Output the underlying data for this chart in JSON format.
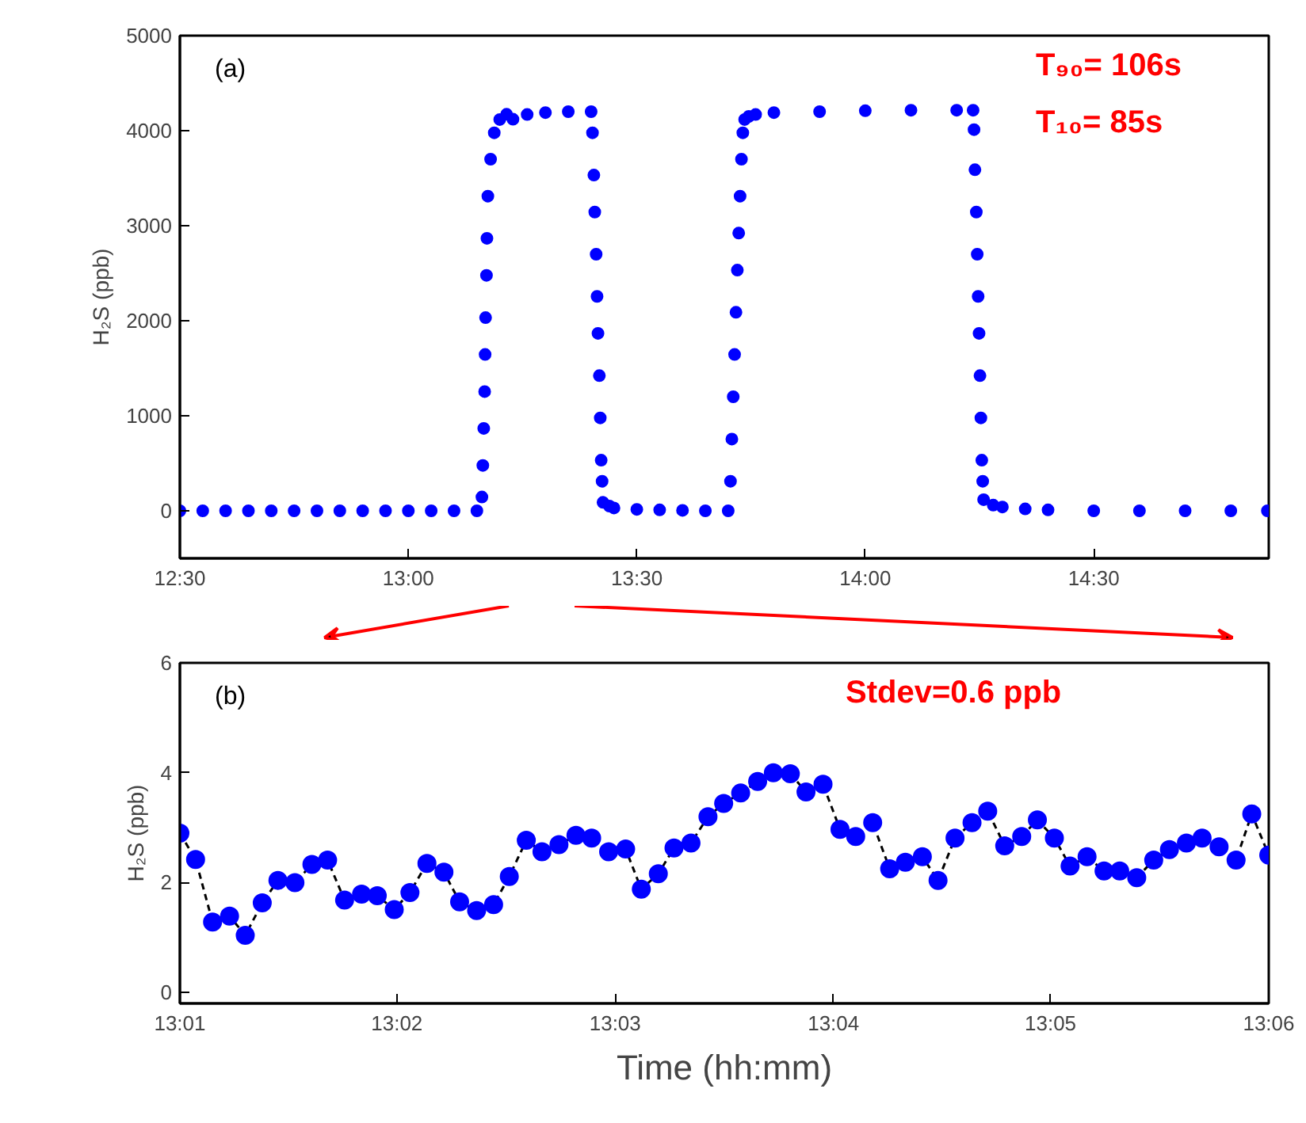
{
  "chart_data": [
    {
      "type": "scatter",
      "ylabel": "H₂S (ppb)",
      "marker": "circle",
      "annotations": [
        "(a)",
        "T₉₀= 106s",
        "T₁₀= 85s"
      ],
      "xlim": [
        12.5,
        14.883
      ],
      "ylim": [
        -500,
        5000
      ],
      "xticks": [
        {
          "value": 12.5,
          "label": "12:30"
        },
        {
          "value": 13.0,
          "label": "13:00"
        },
        {
          "value": 13.5,
          "label": "13:30"
        },
        {
          "value": 14.0,
          "label": "14:00"
        },
        {
          "value": 14.5,
          "label": "14:30"
        }
      ],
      "yticks": [
        0,
        1000,
        2000,
        3000,
        4000,
        5000
      ],
      "series": [
        {
          "color": "#0000ff",
          "x": [
            12.5,
            12.55,
            12.6,
            12.65,
            12.7,
            12.75,
            12.8,
            12.85,
            12.9,
            12.95,
            13.0,
            13.05,
            13.1,
            13.15,
            13.161,
            13.163,
            13.165,
            13.167,
            13.168,
            13.169,
            13.171,
            13.172,
            13.174,
            13.18,
            13.188,
            13.2,
            13.215,
            13.229,
            13.26,
            13.3,
            13.35,
            13.4,
            13.403,
            13.406,
            13.408,
            13.411,
            13.413,
            13.415,
            13.418,
            13.42,
            13.422,
            13.424,
            13.426,
            13.44,
            13.45,
            13.5,
            13.55,
            13.6,
            13.65,
            13.7,
            13.705,
            13.708,
            13.711,
            13.714,
            13.717,
            13.72,
            13.723,
            13.726,
            13.729,
            13.732,
            13.736,
            13.745,
            13.76,
            13.8,
            13.9,
            14.0,
            14.1,
            14.2,
            14.236,
            14.238,
            14.24,
            14.243,
            14.245,
            14.247,
            14.249,
            14.251,
            14.253,
            14.255,
            14.257,
            14.259,
            14.28,
            14.3,
            14.35,
            14.4,
            14.5,
            14.6,
            14.7,
            14.8,
            14.88
          ],
          "values": [
            0,
            0,
            0,
            0,
            0,
            0,
            0,
            0,
            0,
            0,
            0,
            0,
            0,
            0,
            145,
            478,
            867,
            1255,
            1645,
            2033,
            2478,
            2867,
            3311,
            3700,
            3978,
            4117,
            4172,
            4120,
            4170,
            4190,
            4200,
            4200,
            3978,
            3533,
            3144,
            2700,
            2256,
            1867,
            1422,
            978,
            533,
            311,
            89,
            50,
            30,
            15,
            10,
            5,
            0,
            0,
            311,
            755,
            1200,
            1645,
            2089,
            2533,
            2922,
            3311,
            3700,
            3978,
            4117,
            4150,
            4170,
            4190,
            4200,
            4210,
            4215,
            4215,
            4215,
            4011,
            3589,
            3144,
            2700,
            2256,
            1867,
            1422,
            978,
            533,
            311,
            117,
            60,
            40,
            20,
            10,
            0,
            0,
            0,
            0,
            0
          ]
        }
      ]
    },
    {
      "type": "line",
      "xlabel": "Time (hh:mm)",
      "ylabel": "H₂S (ppb)",
      "marker": "circle",
      "line_style": "dashed",
      "annotations": [
        "(b)",
        "Stdev=0.6 ppb"
      ],
      "xlim": [
        13.0167,
        13.1
      ],
      "ylim": [
        -0.2,
        6
      ],
      "xticks": [
        {
          "value": 13.0167,
          "label": "13:01"
        },
        {
          "value": 13.0333,
          "label": "13:02"
        },
        {
          "value": 13.05,
          "label": "13:03"
        },
        {
          "value": 13.0667,
          "label": "13:04"
        },
        {
          "value": 13.0833,
          "label": "13:05"
        },
        {
          "value": 13.1,
          "label": "13:06"
        }
      ],
      "yticks": [
        0,
        2,
        4,
        6
      ],
      "series": [
        {
          "color": "#0000ff",
          "x": [
            13.0167,
            13.0179,
            13.0192,
            13.0205,
            13.0217,
            13.023,
            13.0242,
            13.0255,
            13.0268,
            13.028,
            13.0293,
            13.0306,
            13.0318,
            13.0331,
            13.0343,
            13.0356,
            13.0369,
            13.0381,
            13.0394,
            13.0407,
            13.0419,
            13.0432,
            13.0444,
            13.0457,
            13.047,
            13.0482,
            13.0495,
            13.0508,
            13.052,
            13.0533,
            13.0545,
            13.0558,
            13.0571,
            13.0583,
            13.0596,
            13.0609,
            13.0621,
            13.0634,
            13.0646,
            13.0659,
            13.0672,
            13.0684,
            13.0697,
            13.071,
            13.0722,
            13.0735,
            13.0747,
            13.076,
            13.0773,
            13.0785,
            13.0798,
            13.0811,
            13.0823,
            13.0836,
            13.0848,
            13.0861,
            13.0874,
            13.0886,
            13.0899,
            13.0912,
            13.0924,
            13.0937,
            13.0949,
            13.0962,
            13.0975,
            13.0987,
            13.1
          ],
          "values": [
            2.9,
            2.42,
            1.28,
            1.39,
            1.04,
            1.63,
            2.04,
            2.0,
            2.33,
            2.41,
            1.68,
            1.79,
            1.76,
            1.51,
            1.82,
            2.35,
            2.19,
            1.65,
            1.49,
            1.6,
            2.11,
            2.77,
            2.56,
            2.69,
            2.86,
            2.81,
            2.56,
            2.61,
            1.88,
            2.16,
            2.63,
            2.72,
            3.2,
            3.44,
            3.63,
            3.84,
            4.0,
            3.98,
            3.65,
            3.79,
            2.97,
            2.84,
            3.09,
            2.25,
            2.37,
            2.47,
            2.04,
            2.81,
            3.09,
            3.3,
            2.67,
            2.84,
            3.14,
            2.81,
            2.3,
            2.47,
            2.21,
            2.21,
            2.09,
            2.41,
            2.6,
            2.72,
            2.81,
            2.65,
            2.41,
            3.25,
            2.5
          ]
        }
      ]
    }
  ]
}
